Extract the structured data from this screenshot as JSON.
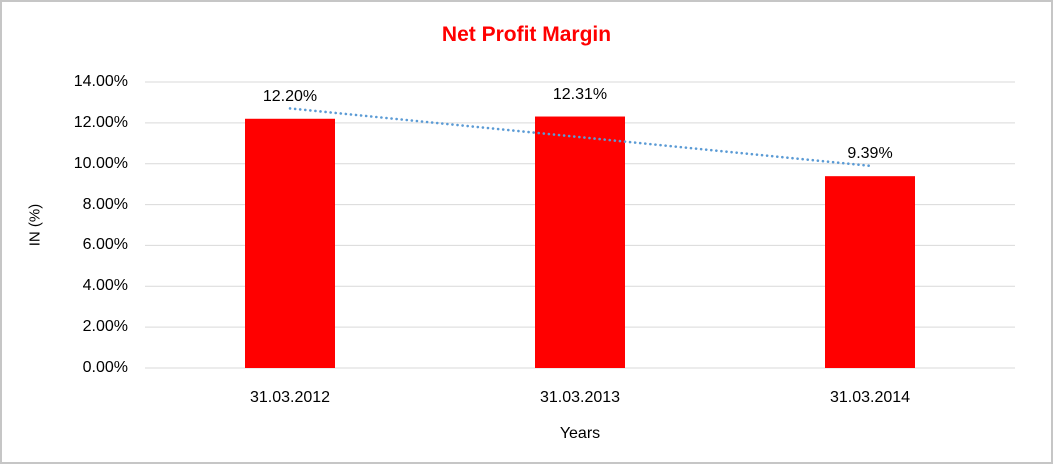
{
  "chart_data": {
    "type": "bar",
    "title": "Net Profit Margin",
    "xlabel": "Years",
    "ylabel": "IN (%)",
    "categories": [
      "31.03.2012",
      "31.03.2013",
      "31.03.2014"
    ],
    "values": [
      12.2,
      12.31,
      9.39
    ],
    "data_labels": [
      "12.20%",
      "12.31%",
      "9.39%"
    ],
    "ylim": [
      0,
      14
    ],
    "y_tick_step": 2,
    "y_tick_labels": [
      "0.00%",
      "2.00%",
      "4.00%",
      "6.00%",
      "8.00%",
      "10.00%",
      "12.00%",
      "14.00%"
    ],
    "grid": true,
    "legend": "none",
    "trendline": {
      "type": "linear",
      "style": "dotted"
    },
    "colors": {
      "bar": "#FF0000",
      "title": "#FF0000",
      "trendline": "#5B9BD5",
      "gridline": "#D9D9D9",
      "text": "#000000",
      "border": "#C6C6C6"
    }
  }
}
